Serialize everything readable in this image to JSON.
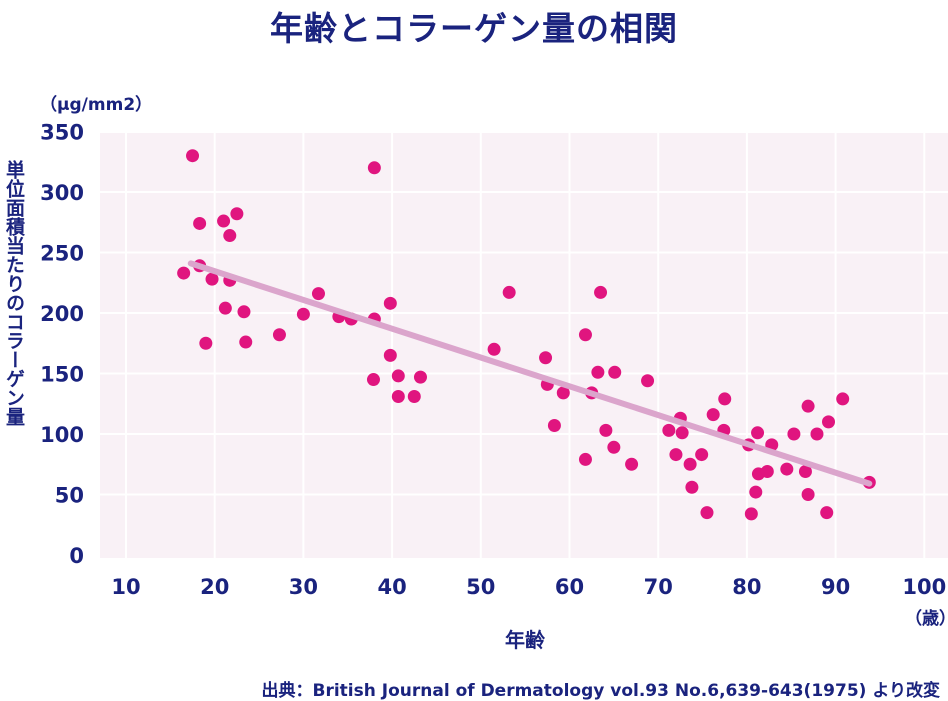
{
  "title": "年齢とコラーゲン量の相関",
  "source": "出典：British Journal of Dermatology vol.93 No.6,639-643(1975) より改変",
  "colors": {
    "point": "#e0157f",
    "trend": "#dba5cc",
    "plot_bg": "#f9f1f6",
    "text": "#1a237e"
  },
  "chart_data": {
    "type": "scatter",
    "xlabel": "年齢",
    "xunit": "（歳）",
    "ylabel": "単位面積当たりのコラーゲン量",
    "yunit": "（μg/mm2）",
    "xlim": [
      10,
      100
    ],
    "ylim": [
      0,
      350
    ],
    "xticks": [
      10,
      20,
      30,
      40,
      50,
      60,
      70,
      80,
      90,
      100
    ],
    "yticks": [
      0,
      50,
      100,
      150,
      200,
      250,
      300,
      350
    ],
    "grid": true,
    "points": [
      [
        16.5,
        233
      ],
      [
        17.5,
        330
      ],
      [
        18.3,
        274
      ],
      [
        18.3,
        239
      ],
      [
        19,
        175
      ],
      [
        19.7,
        228
      ],
      [
        21,
        276
      ],
      [
        21.2,
        204
      ],
      [
        21.7,
        227
      ],
      [
        21.7,
        264
      ],
      [
        22.5,
        282
      ],
      [
        23.3,
        201
      ],
      [
        23.5,
        176
      ],
      [
        27.3,
        182
      ],
      [
        30,
        199
      ],
      [
        31.7,
        216
      ],
      [
        34,
        197
      ],
      [
        35.4,
        195
      ],
      [
        38,
        320
      ],
      [
        38,
        195
      ],
      [
        37.9,
        145
      ],
      [
        39.8,
        165
      ],
      [
        39.8,
        208
      ],
      [
        40.7,
        148
      ],
      [
        40.7,
        131
      ],
      [
        42.5,
        131
      ],
      [
        43.2,
        147
      ],
      [
        51.5,
        170
      ],
      [
        53.2,
        217
      ],
      [
        57.3,
        163
      ],
      [
        57.5,
        141
      ],
      [
        58.3,
        107
      ],
      [
        59.3,
        134
      ],
      [
        61.8,
        182
      ],
      [
        61.8,
        79
      ],
      [
        62.5,
        134
      ],
      [
        63.2,
        151
      ],
      [
        63.5,
        217
      ],
      [
        64.1,
        103
      ],
      [
        65,
        89
      ],
      [
        65.1,
        151
      ],
      [
        67,
        75
      ],
      [
        68.8,
        144
      ],
      [
        71.2,
        103
      ],
      [
        72,
        83
      ],
      [
        72.5,
        113
      ],
      [
        72.7,
        101
      ],
      [
        73.6,
        75
      ],
      [
        73.8,
        56
      ],
      [
        74.9,
        83
      ],
      [
        75.5,
        35
      ],
      [
        76.2,
        116
      ],
      [
        77.4,
        103
      ],
      [
        77.5,
        129
      ],
      [
        80.2,
        91
      ],
      [
        80.5,
        34
      ],
      [
        81,
        52
      ],
      [
        81.2,
        101
      ],
      [
        81.3,
        67
      ],
      [
        82.3,
        69
      ],
      [
        82.8,
        91
      ],
      [
        84.5,
        71
      ],
      [
        85.3,
        100
      ],
      [
        86.6,
        69
      ],
      [
        86.9,
        123
      ],
      [
        86.9,
        50
      ],
      [
        87.9,
        100
      ],
      [
        89,
        35
      ],
      [
        89.2,
        110
      ],
      [
        90.8,
        129
      ],
      [
        93.8,
        60
      ]
    ],
    "trendline": {
      "x": [
        17.3,
        93.8
      ],
      "y": [
        241,
        59
      ]
    }
  }
}
